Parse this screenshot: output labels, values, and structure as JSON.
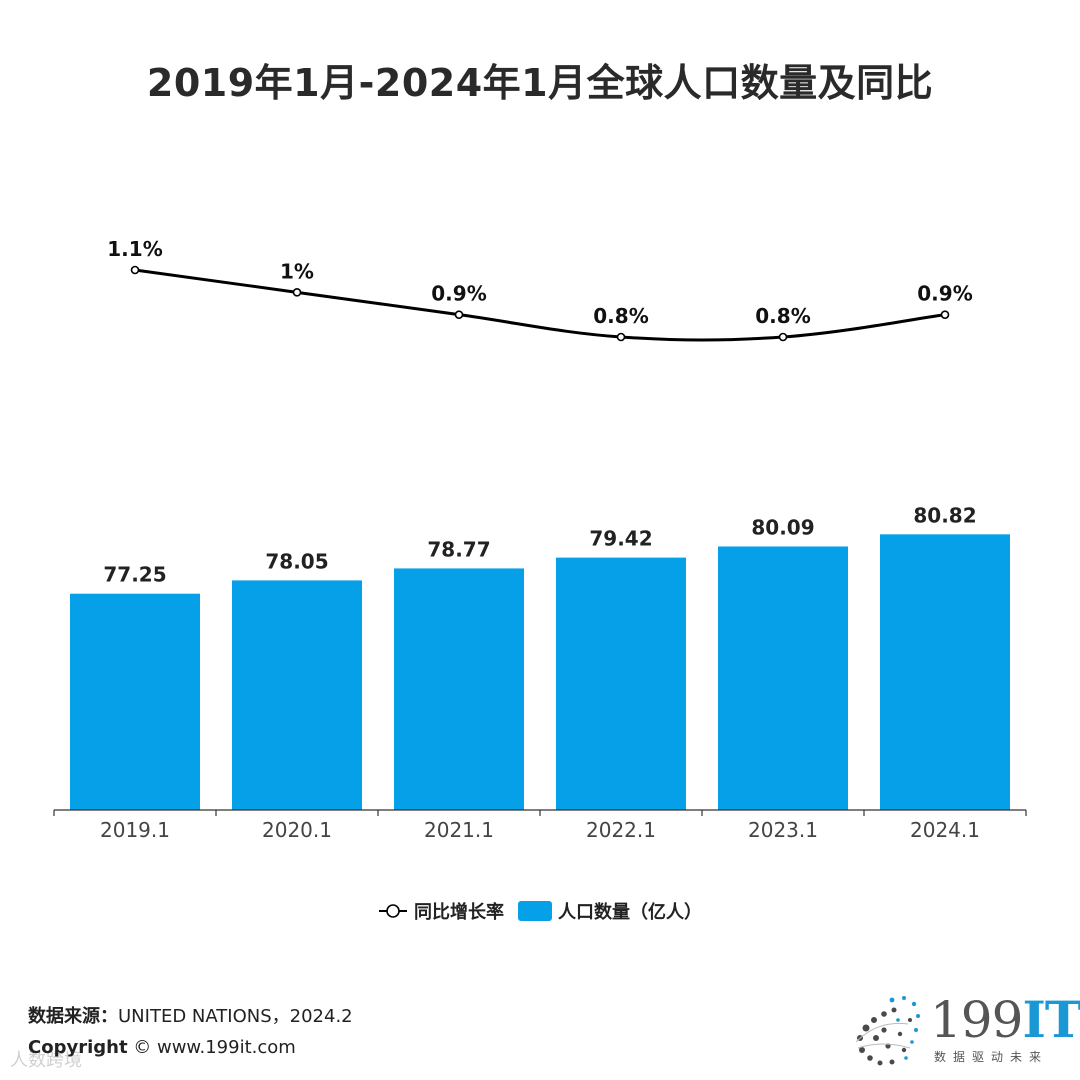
{
  "title": "2019年1月-2024年1月全球人口数量及同比",
  "chart_data": {
    "type": "bar",
    "categories": [
      "2019.1",
      "2020.1",
      "2021.1",
      "2022.1",
      "2023.1",
      "2024.1"
    ],
    "series": [
      {
        "name": "人口数量（亿人）",
        "type": "bar",
        "values": [
          77.25,
          78.05,
          78.77,
          79.42,
          80.09,
          80.82
        ],
        "labels": [
          "77.25",
          "78.05",
          "78.77",
          "79.42",
          "80.09",
          "80.82"
        ],
        "color": "#05A0E8"
      },
      {
        "name": "同比增长率",
        "type": "line",
        "values": [
          1.1,
          1.0,
          0.9,
          0.8,
          0.8,
          0.9
        ],
        "labels": [
          "1.1%",
          "1%",
          "0.9%",
          "0.8%",
          "0.8%",
          "0.9%"
        ],
        "color": "#000000"
      }
    ],
    "legend": "bottom"
  },
  "legend": {
    "line_label": "同比增长率",
    "bar_label": "人口数量（亿人）"
  },
  "footer": {
    "source_key": "数据来源：",
    "source_value": "UNITED NATIONS，2024.2",
    "copyright_key": "Copyright",
    "copyright_value": " ©  www.199it.com",
    "watermark": "人数跨境"
  },
  "logo": {
    "number": "199",
    "it": "IT",
    "tagline": "数据驱动未来"
  }
}
